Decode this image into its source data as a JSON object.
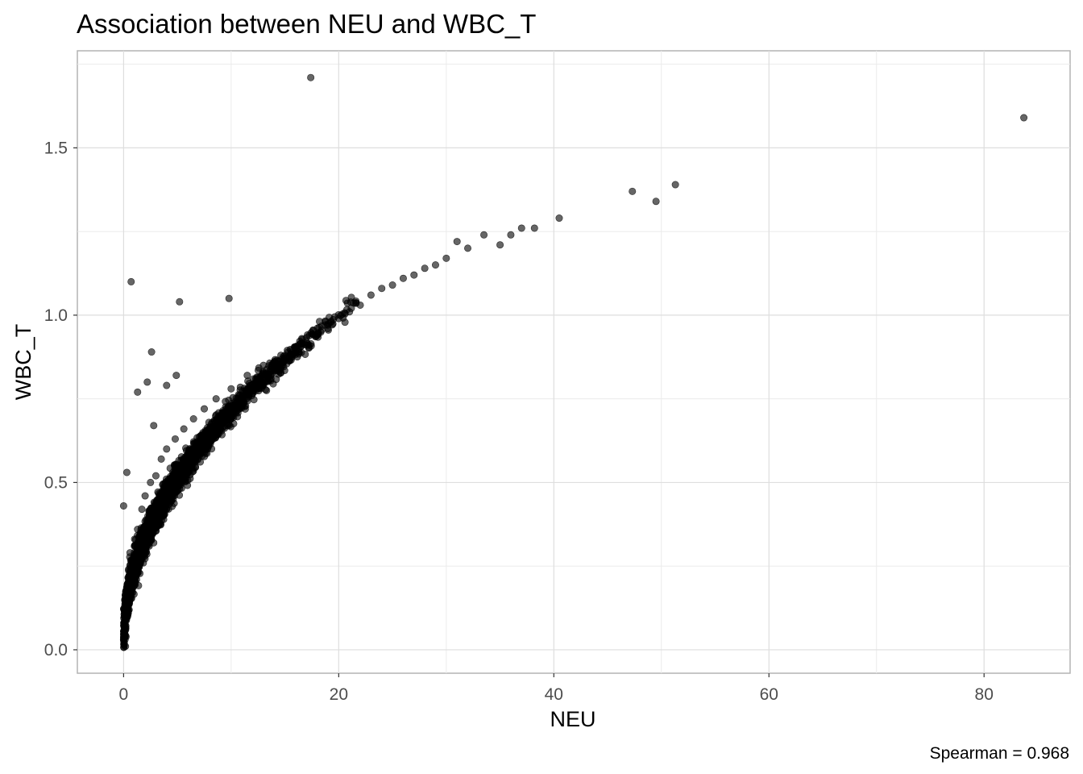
{
  "chart_data": {
    "type": "scatter",
    "title": "Association between NEU and WBC_T",
    "xlabel": "NEU",
    "ylabel": "WBC_T",
    "caption": "Spearman = 0.968",
    "xlim": [
      -4.3,
      88.0
    ],
    "ylim": [
      -0.07,
      1.79
    ],
    "x_ticks": [
      0,
      20,
      40,
      60,
      80
    ],
    "x_tick_labels": [
      "0",
      "20",
      "40",
      "60",
      "80"
    ],
    "y_ticks": [
      0.0,
      0.5,
      1.0,
      1.5
    ],
    "y_tick_labels": [
      "0.0",
      "0.5",
      "1.0",
      "1.5"
    ],
    "x_minor_ticks": [
      10,
      30,
      50,
      70
    ],
    "y_minor_ticks": [
      0.25,
      0.75,
      1.25,
      1.75
    ],
    "grid": true,
    "point_color": "#000000",
    "point_opacity": 0.6,
    "trend": "concave increasing; dense band following WBC_T ≈ 0.22·NEU^0.5 for NEU in 0–30",
    "points": [
      {
        "x": 0.0,
        "y": 0.03
      },
      {
        "x": 0.1,
        "y": 0.05
      },
      {
        "x": 0.2,
        "y": 0.09
      },
      {
        "x": 0.3,
        "y": 0.12
      },
      {
        "x": 0.3,
        "y": 0.17
      },
      {
        "x": 0.5,
        "y": 0.22
      },
      {
        "x": 0.6,
        "y": 0.29
      },
      {
        "x": 0.8,
        "y": 0.25
      },
      {
        "x": 1.0,
        "y": 0.31
      },
      {
        "x": 1.2,
        "y": 0.21
      },
      {
        "x": 1.3,
        "y": 0.36
      },
      {
        "x": 1.5,
        "y": 0.27
      },
      {
        "x": 1.7,
        "y": 0.42
      },
      {
        "x": 1.9,
        "y": 0.33
      },
      {
        "x": 2.0,
        "y": 0.46
      },
      {
        "x": 2.3,
        "y": 0.38
      },
      {
        "x": 2.5,
        "y": 0.5
      },
      {
        "x": 2.8,
        "y": 0.41
      },
      {
        "x": 3.0,
        "y": 0.52
      },
      {
        "x": 3.2,
        "y": 0.45
      },
      {
        "x": 3.5,
        "y": 0.57
      },
      {
        "x": 3.8,
        "y": 0.47
      },
      {
        "x": 4.0,
        "y": 0.6
      },
      {
        "x": 4.4,
        "y": 0.51
      },
      {
        "x": 4.8,
        "y": 0.63
      },
      {
        "x": 5.2,
        "y": 0.55
      },
      {
        "x": 5.6,
        "y": 0.66
      },
      {
        "x": 6.0,
        "y": 0.58
      },
      {
        "x": 6.5,
        "y": 0.69
      },
      {
        "x": 7.0,
        "y": 0.62
      },
      {
        "x": 7.5,
        "y": 0.72
      },
      {
        "x": 8.0,
        "y": 0.66
      },
      {
        "x": 8.6,
        "y": 0.75
      },
      {
        "x": 9.2,
        "y": 0.69
      },
      {
        "x": 10.0,
        "y": 0.78
      },
      {
        "x": 10.8,
        "y": 0.74
      },
      {
        "x": 11.5,
        "y": 0.82
      },
      {
        "x": 12.3,
        "y": 0.79
      },
      {
        "x": 13.0,
        "y": 0.85
      },
      {
        "x": 14.0,
        "y": 0.84
      },
      {
        "x": 15.0,
        "y": 0.88
      },
      {
        "x": 16.0,
        "y": 0.89
      },
      {
        "x": 17.0,
        "y": 0.92
      },
      {
        "x": 18.0,
        "y": 0.94
      },
      {
        "x": 19.0,
        "y": 0.96
      },
      {
        "x": 20.0,
        "y": 0.99
      },
      {
        "x": 21.0,
        "y": 1.01
      },
      {
        "x": 22.0,
        "y": 1.03
      },
      {
        "x": 23.0,
        "y": 1.06
      },
      {
        "x": 24.0,
        "y": 1.08
      },
      {
        "x": 25.0,
        "y": 1.09
      },
      {
        "x": 26.0,
        "y": 1.11
      },
      {
        "x": 27.0,
        "y": 1.12
      },
      {
        "x": 28.0,
        "y": 1.14
      },
      {
        "x": 29.0,
        "y": 1.15
      },
      {
        "x": 30.0,
        "y": 1.17
      },
      {
        "x": 31.0,
        "y": 1.22
      },
      {
        "x": 32.0,
        "y": 1.2
      },
      {
        "x": 33.5,
        "y": 1.24
      },
      {
        "x": 35.0,
        "y": 1.21
      },
      {
        "x": 36.0,
        "y": 1.24
      },
      {
        "x": 37.0,
        "y": 1.26
      },
      {
        "x": 38.2,
        "y": 1.26
      },
      {
        "x": 40.5,
        "y": 1.29
      },
      {
        "x": 47.3,
        "y": 1.37
      },
      {
        "x": 49.5,
        "y": 1.34
      },
      {
        "x": 51.3,
        "y": 1.39
      },
      {
        "x": 83.7,
        "y": 1.59
      },
      {
        "x": 17.4,
        "y": 1.71
      },
      {
        "x": 0.7,
        "y": 1.1
      },
      {
        "x": 5.2,
        "y": 1.04
      },
      {
        "x": 9.8,
        "y": 1.05
      },
      {
        "x": 2.6,
        "y": 0.89
      },
      {
        "x": 2.2,
        "y": 0.8
      },
      {
        "x": 4.0,
        "y": 0.79
      },
      {
        "x": 4.9,
        "y": 0.82
      },
      {
        "x": 0.3,
        "y": 0.53
      },
      {
        "x": 0.0,
        "y": 0.43
      },
      {
        "x": 1.3,
        "y": 0.77
      },
      {
        "x": 2.8,
        "y": 0.67
      }
    ]
  }
}
